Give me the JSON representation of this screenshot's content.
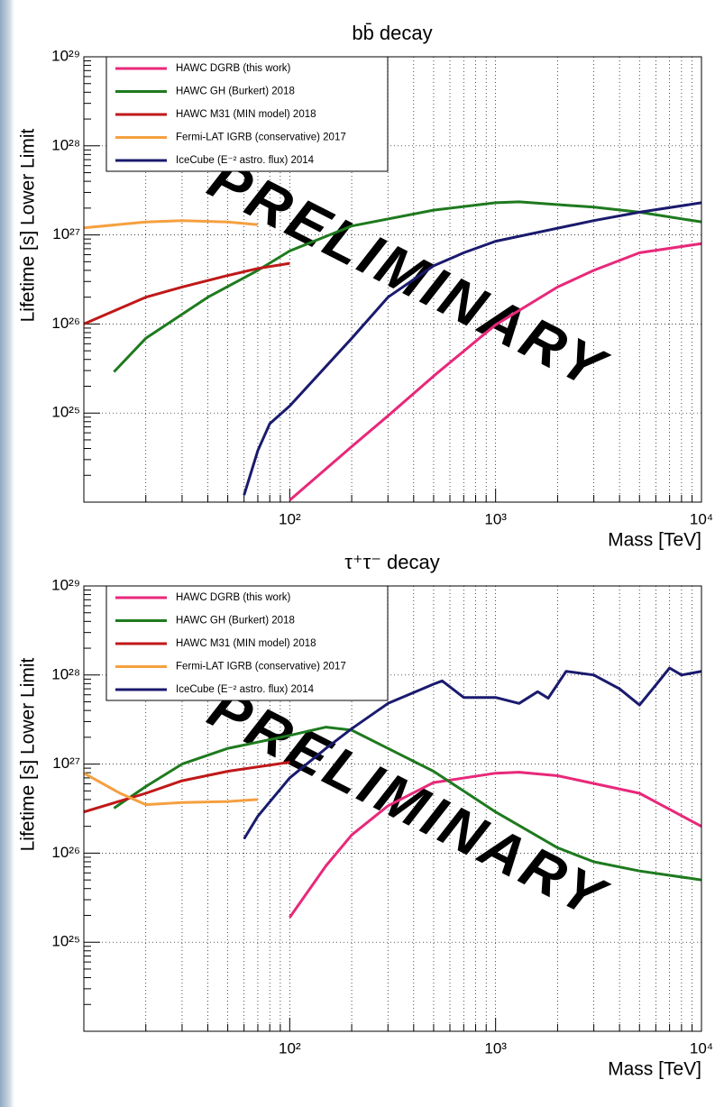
{
  "chart_data": [
    {
      "type": "line",
      "title": "bb̄ decay",
      "xlabel": "Mass [TeV]",
      "ylabel": "Lifetime [s] Lower Limit",
      "watermark": "PRELIMINARY",
      "xscale": "log",
      "yscale": "log",
      "grid": true,
      "legend": "upper left",
      "xlim": [
        10,
        10000
      ],
      "ylim": [
        1e+24,
        1e+29
      ],
      "xticks": [
        {
          "value": 100,
          "label": "10²"
        },
        {
          "value": 1000,
          "label": "10³"
        },
        {
          "value": 10000,
          "label": "10⁴"
        }
      ],
      "yticks": [
        {
          "value": 1e+25,
          "label": "10²⁵"
        },
        {
          "value": 1e+26,
          "label": "10²⁶"
        },
        {
          "value": 1e+27,
          "label": "10²⁷"
        },
        {
          "value": 1e+28,
          "label": "10²⁸"
        },
        {
          "value": 1e+29,
          "label": "10²⁹"
        }
      ],
      "series": [
        {
          "name": "HAWC DGRB (this work)",
          "color": "#e8287a",
          "x": [
            100,
            200,
            300,
            500,
            1000,
            2000,
            3000,
            5000,
            10000
          ],
          "values": [
            1.05e+24,
            4.2e+24,
            9.3e+24,
            2.6e+25,
            9.8e+25,
            2.6e+26,
            4e+26,
            6.3e+26,
            8e+26
          ]
        },
        {
          "name": "HAWC GH (Burkert) 2018",
          "color": "#1e7a1e",
          "x": [
            14,
            20,
            40,
            70,
            100,
            200,
            500,
            1000,
            1300,
            3000,
            5000,
            10000
          ],
          "values": [
            2.9e+25,
            6.9e+25,
            2e+26,
            4e+26,
            6.6e+26,
            1.26e+27,
            1.9e+27,
            2.3e+27,
            2.35e+27,
            2.05e+27,
            1.8e+27,
            1.4e+27
          ]
        },
        {
          "name": "HAWC M31 (MIN model) 2018",
          "color": "#c01818",
          "x": [
            10,
            15,
            20,
            30,
            50,
            70,
            100
          ],
          "values": [
            1e+26,
            1.5e+26,
            2e+26,
            2.6e+26,
            3.5e+26,
            4.2e+26,
            4.8e+26
          ]
        },
        {
          "name": "Fermi-LAT IGRB (conservative) 2017",
          "color": "#f5a040",
          "x": [
            10,
            20,
            30,
            50,
            70
          ],
          "values": [
            1.2e+27,
            1.4e+27,
            1.45e+27,
            1.4e+27,
            1.3e+27
          ]
        },
        {
          "name": "IceCube (E⁻² astro. flux) 2014",
          "color": "#1a1a6e",
          "x": [
            60,
            70,
            80,
            100,
            200,
            300,
            500,
            700,
            1000,
            3000,
            5000,
            10000
          ],
          "values": [
            1.2e+24,
            3.8e+24,
            7.6e+24,
            1.2e+25,
            6.9e+25,
            2e+26,
            4.5e+26,
            6.3e+26,
            8.5e+26,
            1.45e+27,
            1.8e+27,
            2.3e+27
          ]
        }
      ]
    },
    {
      "type": "line",
      "title": "τ⁺τ⁻ decay",
      "xlabel": "Mass [TeV]",
      "ylabel": "Lifetime [s] Lower Limit",
      "watermark": "PRELIMINARY",
      "xscale": "log",
      "yscale": "log",
      "grid": true,
      "legend": "upper left",
      "xlim": [
        10,
        10000
      ],
      "ylim": [
        1e+24,
        1e+29
      ],
      "xticks": [
        {
          "value": 100,
          "label": "10²"
        },
        {
          "value": 1000,
          "label": "10³"
        },
        {
          "value": 10000,
          "label": "10⁴"
        }
      ],
      "yticks": [
        {
          "value": 1e+25,
          "label": "10²⁵"
        },
        {
          "value": 1e+26,
          "label": "10²⁶"
        },
        {
          "value": 1e+27,
          "label": "10²⁷"
        },
        {
          "value": 1e+28,
          "label": "10²⁸"
        },
        {
          "value": 1e+29,
          "label": "10²⁹"
        }
      ],
      "series": [
        {
          "name": "HAWC DGRB (this work)",
          "color": "#e8287a",
          "x": [
            100,
            150,
            200,
            300,
            500,
            1000,
            1300,
            2000,
            5000,
            10000
          ],
          "values": [
            1.9e+25,
            7.2e+25,
            1.6e+26,
            3.4e+26,
            6.2e+26,
            7.9e+26,
            8.1e+26,
            7.4e+26,
            4.7e+26,
            2e+26
          ]
        },
        {
          "name": "HAWC GH (Burkert) 2018",
          "color": "#1e7a1e",
          "x": [
            14,
            20,
            30,
            50,
            100,
            150,
            200,
            300,
            500,
            1000,
            2000,
            3000,
            5000,
            10000
          ],
          "values": [
            3.2e+26,
            5.6e+26,
            1e+27,
            1.5e+27,
            2.1e+27,
            2.6e+27,
            2.4e+27,
            1.5e+27,
            8.3e+26,
            2.9e+26,
            1.15e+26,
            8e+25,
            6.3e+25,
            5e+25
          ]
        },
        {
          "name": "HAWC M31 (MIN model) 2018",
          "color": "#c01818",
          "x": [
            10,
            20,
            30,
            50,
            100
          ],
          "values": [
            2.9e+26,
            4.7e+26,
            6.5e+26,
            8.3e+26,
            1.05e+27
          ]
        },
        {
          "name": "Fermi-LAT IGRB (conservative) 2017",
          "color": "#f5a040",
          "x": [
            10,
            15,
            20,
            30,
            50,
            70
          ],
          "values": [
            7.9e+26,
            4.7e+26,
            3.5e+26,
            3.7e+26,
            3.8e+26,
            4e+26
          ]
        },
        {
          "name": "IceCube (E⁻² astro. flux) 2014",
          "color": "#1a1a6e",
          "x": [
            60,
            70,
            100,
            150,
            200,
            300,
            500,
            550,
            700,
            1000,
            1300,
            1600,
            1800,
            2200,
            3000,
            4000,
            5000,
            6000,
            7000,
            8000,
            10000
          ],
          "values": [
            1.45e+26,
            2.6e+26,
            7e+26,
            1.5e+27,
            2.5e+27,
            4.8e+27,
            7.9e+27,
            8.6e+27,
            5.6e+27,
            5.6e+27,
            4.8e+27,
            6.5e+27,
            5.5e+27,
            1.1e+28,
            1e+28,
            7e+27,
            4.6e+27,
            7.7e+27,
            1.2e+28,
            1e+28,
            1.1e+28
          ]
        }
      ]
    }
  ]
}
